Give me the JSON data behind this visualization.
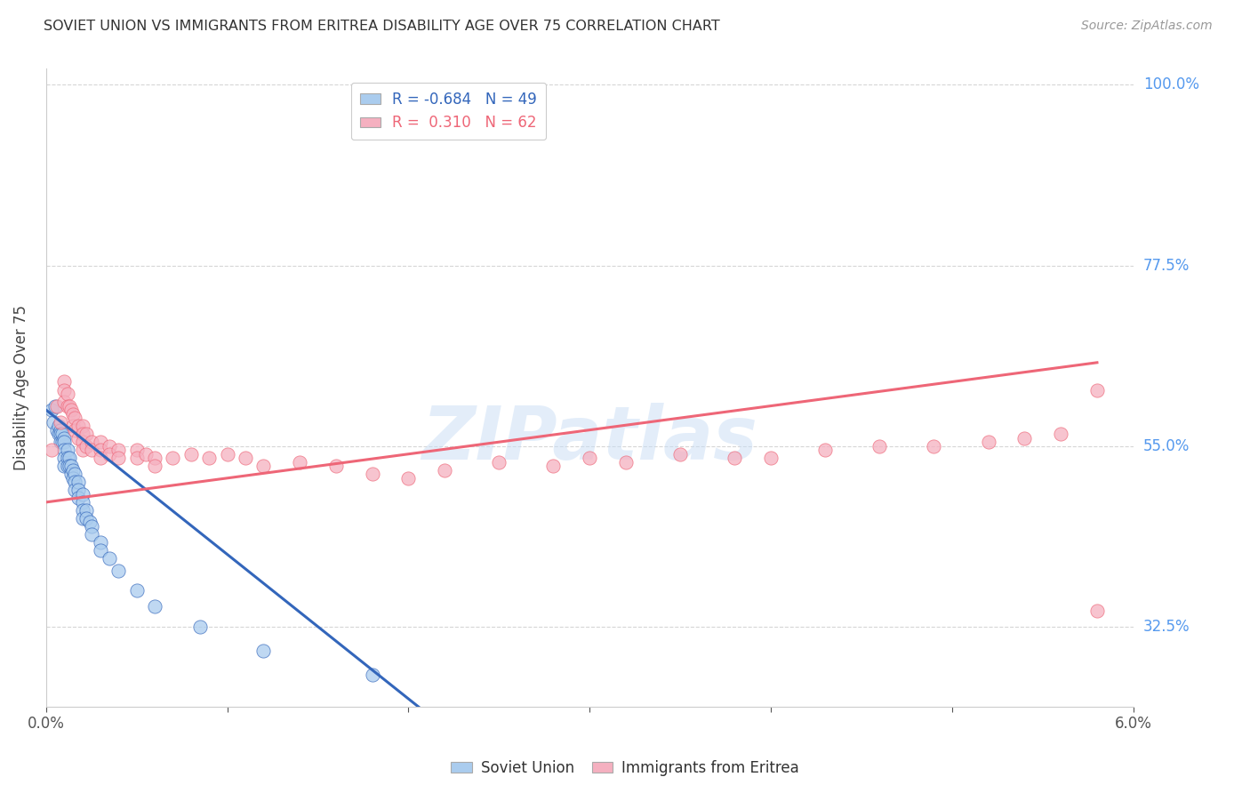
{
  "title": "SOVIET UNION VS IMMIGRANTS FROM ERITREA DISABILITY AGE OVER 75 CORRELATION CHART",
  "source": "Source: ZipAtlas.com",
  "ylabel": "Disability Age Over 75",
  "ytick_labels": [
    "32.5%",
    "55.0%",
    "77.5%",
    "100.0%"
  ],
  "legend_entry1": "R = -0.684   N = 49",
  "legend_entry2": "R =  0.310   N = 62",
  "legend_label1": "Soviet Union",
  "legend_label2": "Immigrants from Eritrea",
  "watermark": "ZIPatlas",
  "background_color": "#ffffff",
  "grid_color": "#cccccc",
  "soviet_color": "#aaccee",
  "eritrea_color": "#f5b0c0",
  "soviet_line_color": "#3366bb",
  "eritrea_line_color": "#ee6677",
  "soviet_scatter_x": [
    0.0003,
    0.0004,
    0.0005,
    0.0006,
    0.0007,
    0.0007,
    0.0008,
    0.0008,
    0.0008,
    0.0009,
    0.0009,
    0.001,
    0.001,
    0.001,
    0.001,
    0.001,
    0.0012,
    0.0012,
    0.0012,
    0.0013,
    0.0013,
    0.0014,
    0.0014,
    0.0015,
    0.0015,
    0.0016,
    0.0016,
    0.0016,
    0.0018,
    0.0018,
    0.0018,
    0.002,
    0.002,
    0.002,
    0.002,
    0.0022,
    0.0022,
    0.0024,
    0.0025,
    0.0025,
    0.003,
    0.003,
    0.0035,
    0.004,
    0.005,
    0.006,
    0.0085,
    0.012,
    0.018
  ],
  "soviet_scatter_y": [
    0.595,
    0.58,
    0.6,
    0.57,
    0.575,
    0.565,
    0.57,
    0.565,
    0.555,
    0.565,
    0.555,
    0.56,
    0.555,
    0.545,
    0.535,
    0.525,
    0.545,
    0.535,
    0.525,
    0.535,
    0.525,
    0.525,
    0.515,
    0.52,
    0.51,
    0.515,
    0.505,
    0.495,
    0.505,
    0.495,
    0.485,
    0.49,
    0.48,
    0.47,
    0.46,
    0.47,
    0.46,
    0.455,
    0.45,
    0.44,
    0.43,
    0.42,
    0.41,
    0.395,
    0.37,
    0.35,
    0.325,
    0.295,
    0.265
  ],
  "eritrea_scatter_x": [
    0.0003,
    0.0006,
    0.0008,
    0.001,
    0.001,
    0.001,
    0.0012,
    0.0012,
    0.0013,
    0.0014,
    0.0015,
    0.0015,
    0.0016,
    0.0016,
    0.0018,
    0.0018,
    0.002,
    0.002,
    0.002,
    0.002,
    0.0022,
    0.0022,
    0.0025,
    0.0025,
    0.003,
    0.003,
    0.003,
    0.0035,
    0.0035,
    0.004,
    0.004,
    0.005,
    0.005,
    0.0055,
    0.006,
    0.006,
    0.007,
    0.008,
    0.009,
    0.01,
    0.011,
    0.012,
    0.014,
    0.016,
    0.018,
    0.02,
    0.022,
    0.025,
    0.028,
    0.03,
    0.032,
    0.035,
    0.038,
    0.04,
    0.043,
    0.046,
    0.049,
    0.052,
    0.054,
    0.056,
    0.058,
    0.058
  ],
  "eritrea_scatter_y": [
    0.545,
    0.6,
    0.58,
    0.63,
    0.62,
    0.605,
    0.615,
    0.6,
    0.6,
    0.595,
    0.59,
    0.575,
    0.585,
    0.57,
    0.575,
    0.56,
    0.575,
    0.565,
    0.555,
    0.545,
    0.565,
    0.55,
    0.555,
    0.545,
    0.555,
    0.545,
    0.535,
    0.55,
    0.54,
    0.545,
    0.535,
    0.545,
    0.535,
    0.54,
    0.535,
    0.525,
    0.535,
    0.54,
    0.535,
    0.54,
    0.535,
    0.525,
    0.53,
    0.525,
    0.515,
    0.51,
    0.52,
    0.53,
    0.525,
    0.535,
    0.53,
    0.54,
    0.535,
    0.535,
    0.545,
    0.55,
    0.55,
    0.555,
    0.56,
    0.565,
    0.62,
    0.345
  ],
  "soviet_line_x": [
    0.0,
    0.022
  ],
  "soviet_line_slope": -18.0,
  "soviet_line_intercept": 0.595,
  "eritrea_line_x": [
    0.0,
    0.058
  ],
  "eritrea_line_slope": 3.0,
  "eritrea_line_intercept": 0.48,
  "xlim": [
    0.0,
    0.06
  ],
  "ylim": [
    0.225,
    1.02
  ],
  "ytick_positions": [
    0.325,
    0.55,
    0.775,
    1.0
  ]
}
